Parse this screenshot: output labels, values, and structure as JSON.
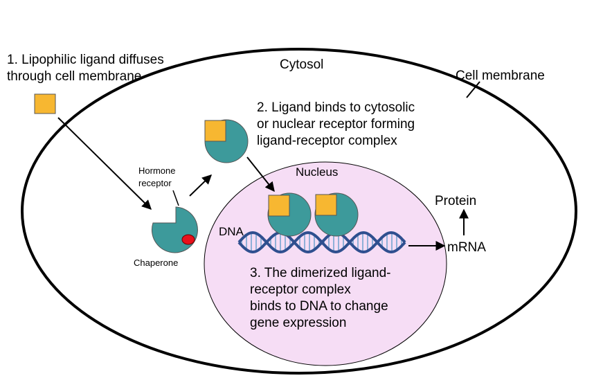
{
  "labels": {
    "step1_line1": "1. Lipophilic ligand diffuses",
    "step1_line2": "through cell membrane",
    "cytosol": "Cytosol",
    "cell_membrane": "Cell membrane",
    "step2_line1": "2. Ligand binds to cytosolic",
    "step2_line2": "or nuclear receptor forming",
    "step2_line3": "ligand-receptor complex",
    "hormone_receptor_line1": "Hormone",
    "hormone_receptor_line2": "receptor",
    "nucleus": "Nucleus",
    "protein": "Protein",
    "dna": "DNA",
    "mrna": "mRNA",
    "chaperone": "Chaperone",
    "step3_line1": "3. The dimerized ligand-",
    "step3_line2": "receptor complex",
    "step3_line3": "binds to DNA to change",
    "step3_line4": "gene expression"
  },
  "colors": {
    "ligand": "#F7B731",
    "receptor": "#3D9A9B",
    "chaperone": "#E8111B",
    "nucleus_fill": "#F6DDF5",
    "dna_strand": "#2F4F8F",
    "dna_rung": "#8FB0D8"
  }
}
